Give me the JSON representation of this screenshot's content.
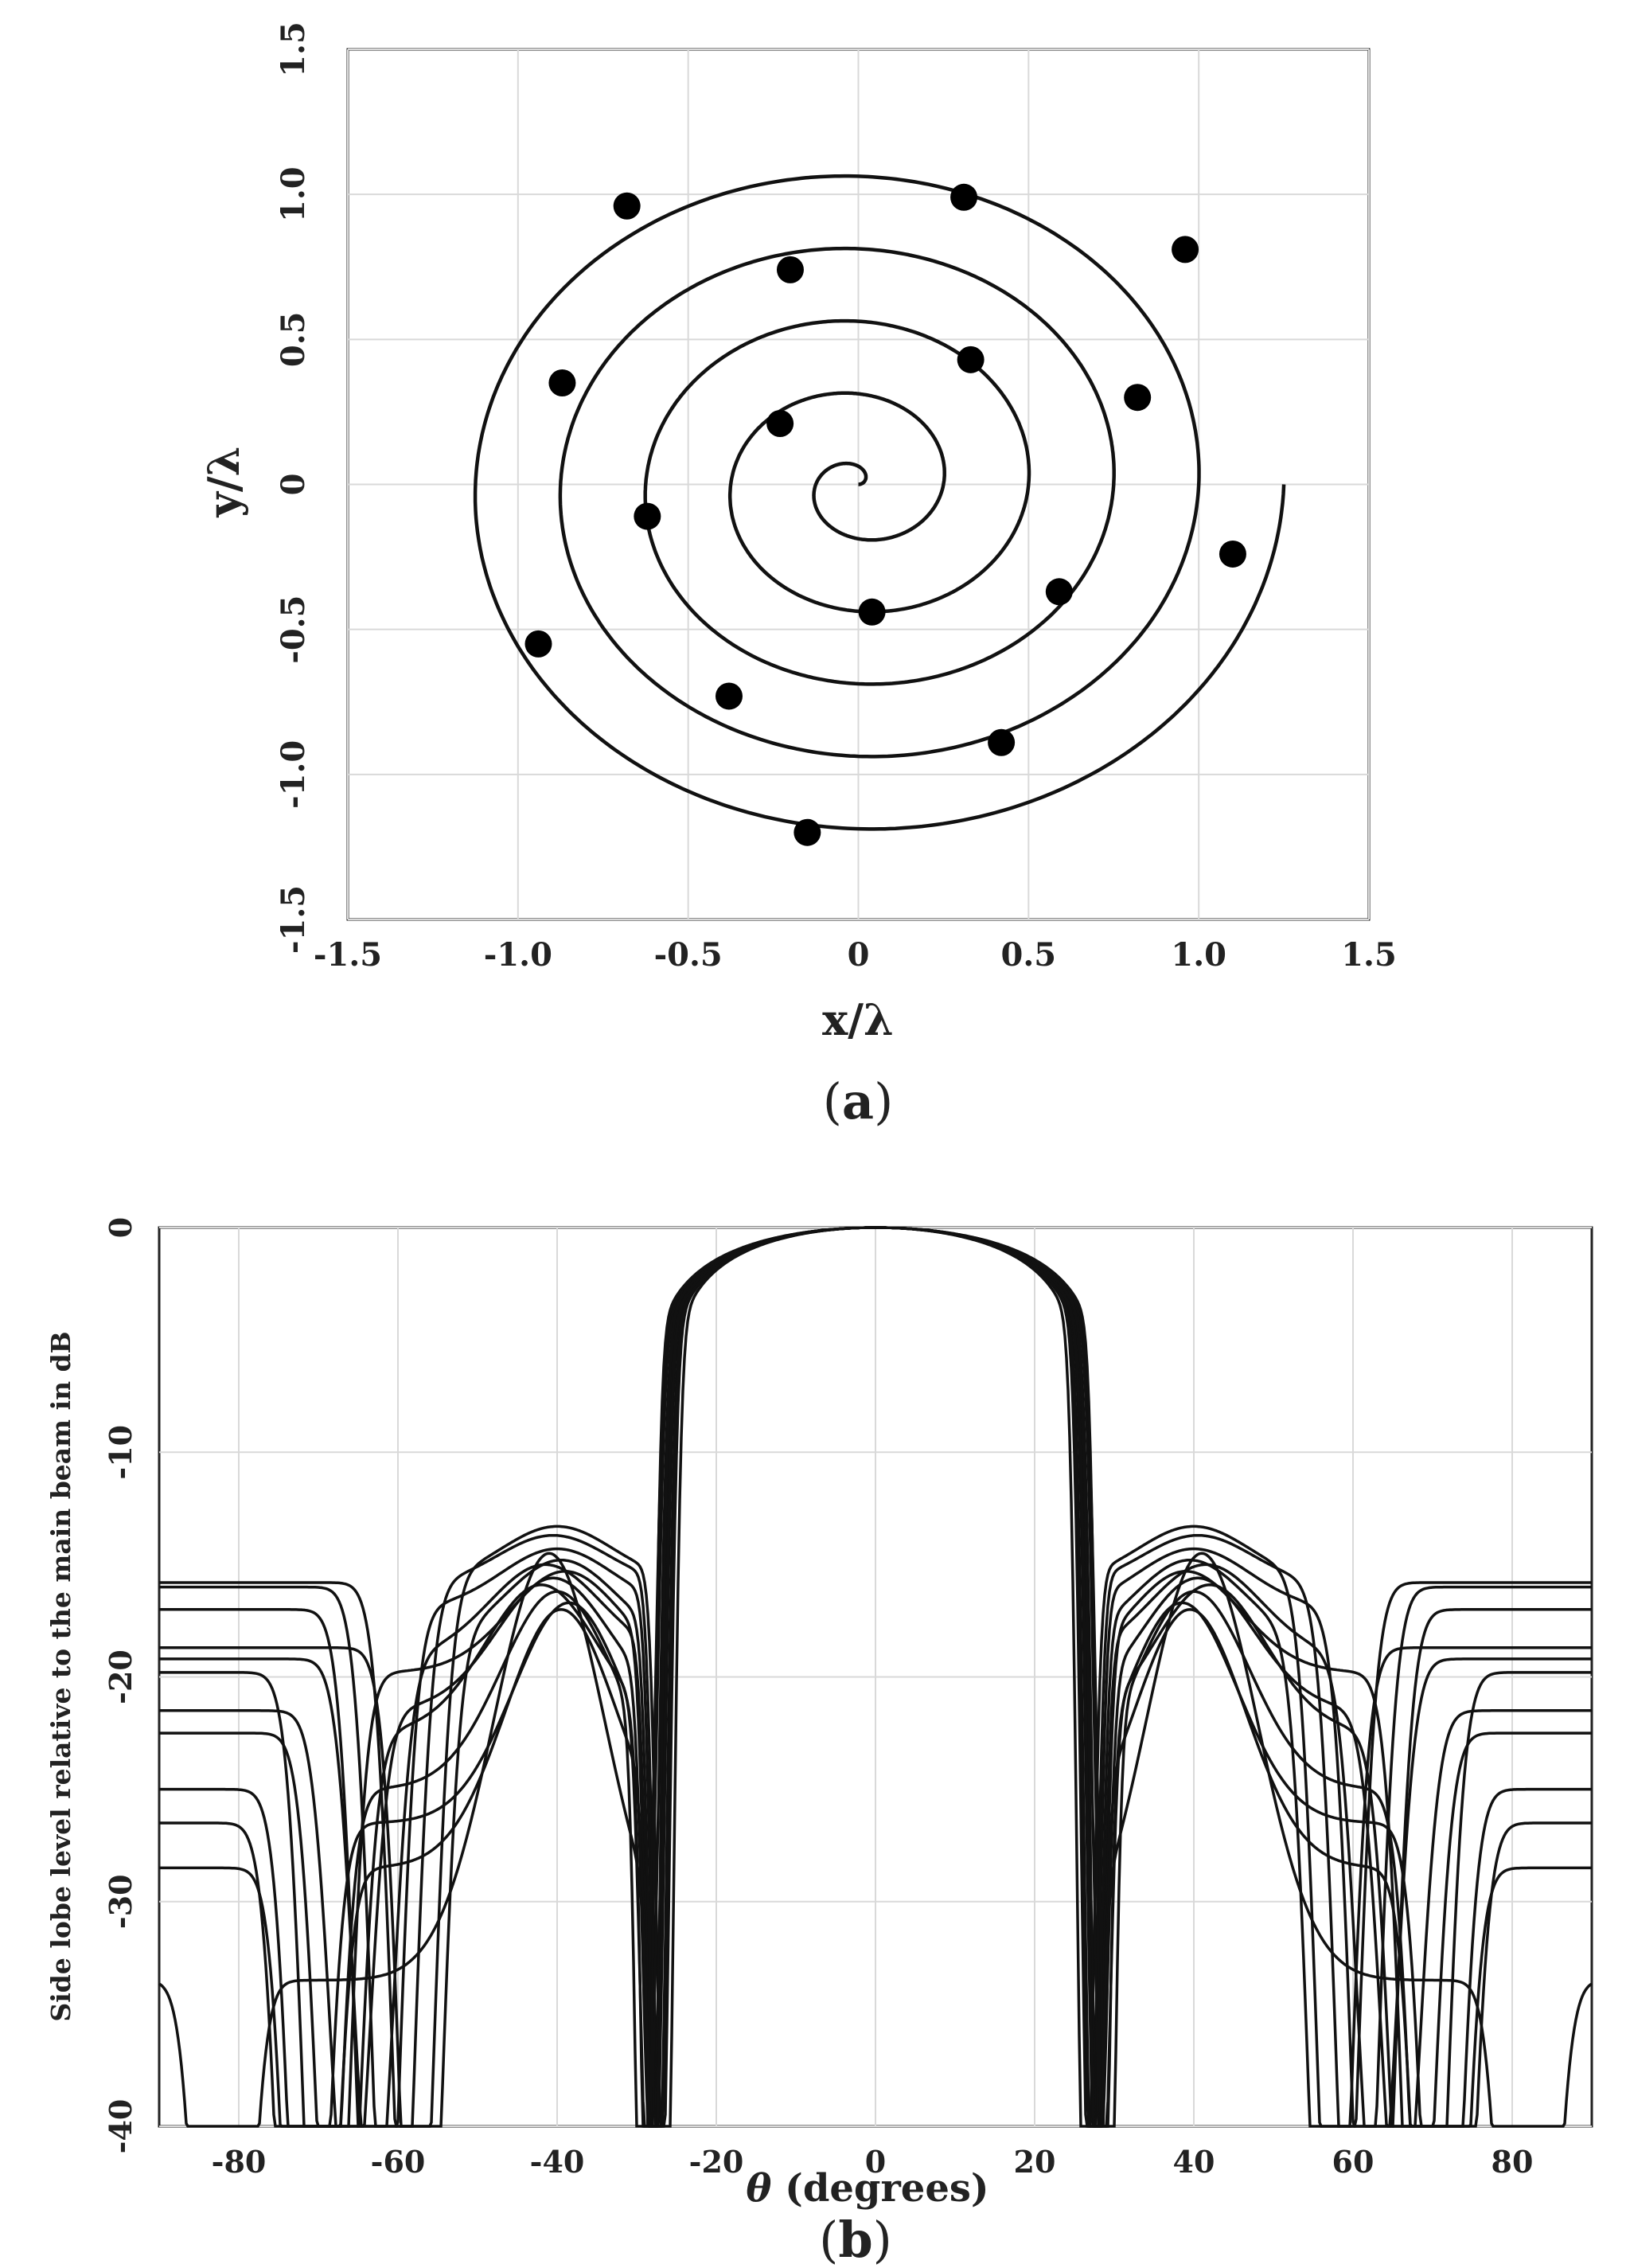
{
  "panels": {
    "a": {
      "caption_open": "(",
      "caption_letter": "a",
      "caption_close": ")"
    },
    "b": {
      "caption_open": "(",
      "caption_letter": "b",
      "caption_close": ")"
    }
  },
  "chart_data": [
    {
      "type": "scatter",
      "title": "",
      "xlabel": "x/λ",
      "ylabel": "y/λ",
      "xlim": [
        -1.5,
        1.5
      ],
      "ylim": [
        -1.5,
        1.5
      ],
      "xticks": [
        -1.5,
        -1.0,
        -0.5,
        0,
        0.5,
        1.0,
        1.5
      ],
      "yticks": [
        -1.5,
        -1.0,
        -0.5,
        0,
        0.5,
        1.0,
        1.5
      ],
      "xtick_labels": [
        "-1.5",
        "-1.0",
        "-0.5",
        "0",
        "0.5",
        "1.0",
        "1.5"
      ],
      "ytick_labels": [
        "-1.5",
        "-1.0",
        "-0.5",
        "0",
        "0.5",
        "1.0",
        "1.5"
      ],
      "grid": true,
      "curve": {
        "shape": "archimedean spiral",
        "r_max": 1.25,
        "turns": 5
      },
      "points": [
        {
          "x": 0.96,
          "y": 0.81
        },
        {
          "x": 0.31,
          "y": 0.99
        },
        {
          "x": -0.68,
          "y": 0.96
        },
        {
          "x": 0.82,
          "y": 0.3
        },
        {
          "x": 0.33,
          "y": 0.43
        },
        {
          "x": -0.2,
          "y": 0.74
        },
        {
          "x": -0.87,
          "y": 0.35
        },
        {
          "x": -0.23,
          "y": 0.21
        },
        {
          "x": -0.62,
          "y": -0.11
        },
        {
          "x": 1.1,
          "y": -0.24
        },
        {
          "x": 0.59,
          "y": -0.37
        },
        {
          "x": 0.04,
          "y": -0.44
        },
        {
          "x": -0.94,
          "y": -0.55
        },
        {
          "x": -0.38,
          "y": -0.73
        },
        {
          "x": 0.42,
          "y": -0.89
        },
        {
          "x": -0.15,
          "y": -1.2
        }
      ]
    },
    {
      "type": "line",
      "title": "",
      "xlabel_symbol": "θ",
      "xlabel_rest": " (degrees)",
      "ylabel": "Side lobe level relative to the main beam in dB",
      "xlim": [
        -90,
        90
      ],
      "ylim": [
        -40,
        0
      ],
      "xticks": [
        -80,
        -60,
        -40,
        -20,
        0,
        20,
        40,
        60,
        80
      ],
      "yticks": [
        0,
        -10,
        -20,
        -30,
        -40
      ],
      "xtick_labels": [
        "-80",
        "-60",
        "-40",
        "-20",
        "0",
        "20",
        "40",
        "60",
        "80"
      ],
      "ytick_labels": [
        "0",
        "-10",
        "-20",
        "-30",
        "-40"
      ],
      "grid": true,
      "symmetric": true,
      "series": [
        {
          "null_deg": 26.2,
          "null_depth": 36.5,
          "lobe_peak": -13.3,
          "lobe_deg": 40.0,
          "null2_deg": 58.0,
          "null2_depth": 40,
          "edge": -15.8
        },
        {
          "null_deg": 26.7,
          "null_depth": 33.0,
          "lobe_peak": -13.7,
          "lobe_deg": 40.5,
          "null2_deg": 60.5,
          "null2_depth": 40,
          "edge": -16.0
        },
        {
          "null_deg": 27.0,
          "null_depth": 31.0,
          "lobe_peak": -14.3,
          "lobe_deg": 40.0,
          "null2_deg": 62.5,
          "null2_depth": 40,
          "edge": -17.0
        },
        {
          "null_deg": 27.3,
          "null_depth": 29.0,
          "lobe_peak": -14.8,
          "lobe_deg": 39.5,
          "null2_deg": 57.0,
          "null2_depth": 40,
          "edge": -18.7
        },
        {
          "null_deg": 27.6,
          "null_depth": 27.0,
          "lobe_peak": -15.0,
          "lobe_deg": 41.5,
          "null2_deg": 63.0,
          "null2_depth": 26.5,
          "edge": -19.2
        },
        {
          "null_deg": 27.9,
          "null_depth": 24.0,
          "lobe_peak": -15.3,
          "lobe_deg": 39.0,
          "null2_deg": 69.0,
          "null2_depth": 40,
          "edge": -19.8
        },
        {
          "null_deg": 28.2,
          "null_depth": 21.5,
          "lobe_peak": -15.6,
          "lobe_deg": 40.5,
          "null2_deg": 66.0,
          "null2_depth": 24.5,
          "edge": -21.5
        },
        {
          "null_deg": 28.5,
          "null_depth": 22.5,
          "lobe_peak": -15.9,
          "lobe_deg": 42.0,
          "null2_deg": 67.5,
          "null2_depth": 32.5,
          "edge": -22.5
        },
        {
          "null_deg": 28.8,
          "null_depth": 40,
          "lobe_peak": -16.2,
          "lobe_deg": 40.0,
          "null2_deg": 70.5,
          "null2_depth": 40,
          "edge": -25.0
        },
        {
          "null_deg": 28.0,
          "null_depth": 40,
          "lobe_peak": -16.7,
          "lobe_deg": 38.5,
          "null2_deg": 72.0,
          "null2_depth": 40,
          "edge": -26.5
        },
        {
          "null_deg": 27.4,
          "null_depth": 28.5,
          "lobe_peak": -17.0,
          "lobe_deg": 39.5,
          "null2_deg": 71.0,
          "null2_depth": 40,
          "edge": -28.5
        },
        {
          "null_deg": 26.9,
          "null_depth": 31.5,
          "lobe_peak": -14.5,
          "lobe_deg": 41.0,
          "null2_deg": 82.0,
          "null2_depth": 40,
          "edge": -33.5
        }
      ]
    }
  ]
}
